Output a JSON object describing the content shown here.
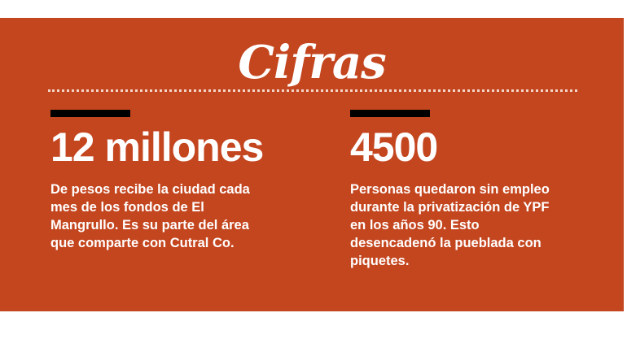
{
  "title": "Cifras",
  "colors": {
    "panel": "#c4461f",
    "bar": "#000000",
    "text": "#ffffff"
  },
  "stats": [
    {
      "value": "12 millones",
      "description": "De pesos recibe la ciudad cada mes de los fondos de El Mangrullo. Es su parte del área que comparte con Cutral Co."
    },
    {
      "value": "4500",
      "description": "Personas quedaron sin empleo durante la privatización de YPF en los años 90. Esto desencadenó la pueblada con piquetes."
    }
  ]
}
